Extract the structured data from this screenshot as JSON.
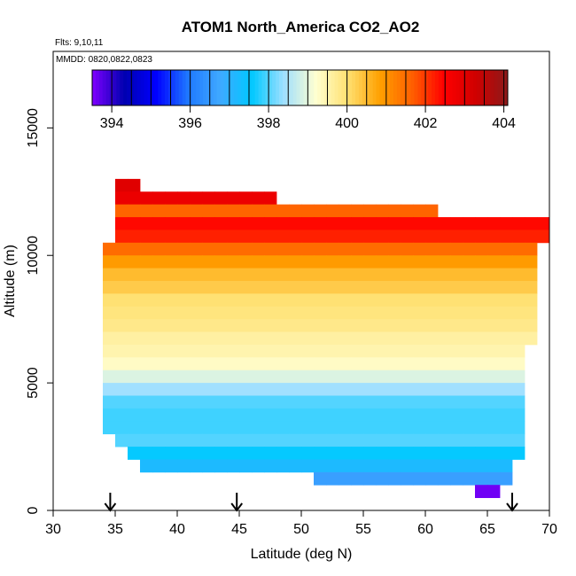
{
  "chart_data": {
    "type": "heatmap",
    "title": "ATOM1 North_America CO2_AO2",
    "notes": [
      "Flts: 9,10,11",
      "MMDD: 0820,0822,0823"
    ],
    "xlabel": "Latitude (deg N)",
    "ylabel": "Altitude (m)",
    "xlim": [
      30,
      70
    ],
    "ylim": [
      0,
      18000
    ],
    "xticks": [
      30,
      35,
      40,
      45,
      50,
      55,
      60,
      65,
      70
    ],
    "yticks": [
      0,
      5000,
      10000,
      15000
    ],
    "grid": false,
    "colorbar": {
      "placement": "top, inside plot",
      "range": [
        393.5,
        404.1
      ],
      "ticks": [
        394,
        396,
        398,
        400,
        402,
        404
      ],
      "colors": [
        "#8000ff",
        "#0000b0",
        "#0000ff",
        "#1f78ff",
        "#3fa9ff",
        "#00c8ff",
        "#a0e0ff",
        "#ffffd0",
        "#ffe070",
        "#ffa000",
        "#ff6000",
        "#ff0000",
        "#d00000",
        "#8b1a1a"
      ]
    },
    "markers_latitude": [
      34.6,
      44.8,
      67.0
    ],
    "cell_size": {
      "latitude_deg": 1.0,
      "altitude_m": 500
    },
    "grid_cells": [
      {
        "altitude_band": [
          12500,
          13000
        ],
        "lat_range": [
          35,
          37
        ],
        "co2": 403.0
      },
      {
        "altitude_band": [
          12000,
          12500
        ],
        "lat_range": [
          35,
          48
        ],
        "co2": 402.8
      },
      {
        "altitude_band": [
          11500,
          12000
        ],
        "lat_range": [
          35,
          61
        ],
        "co2": 401.6
      },
      {
        "altitude_band": [
          11000,
          11500
        ],
        "lat_range": [
          35,
          70
        ],
        "co2": 402.4
      },
      {
        "altitude_band": [
          10500,
          11000
        ],
        "lat_range": [
          35,
          70
        ],
        "co2": 402.2
      },
      {
        "altitude_band": [
          10000,
          10500
        ],
        "lat_range": [
          34,
          69
        ],
        "co2": 401.5
      },
      {
        "altitude_band": [
          9500,
          10000
        ],
        "lat_range": [
          34,
          69
        ],
        "co2": 400.9
      },
      {
        "altitude_band": [
          9000,
          9500
        ],
        "lat_range": [
          34,
          69
        ],
        "co2": 400.5
      },
      {
        "altitude_band": [
          8500,
          9000
        ],
        "lat_range": [
          34,
          69
        ],
        "co2": 400.3
      },
      {
        "altitude_band": [
          8000,
          8500
        ],
        "lat_range": [
          34,
          69
        ],
        "co2": 400.0
      },
      {
        "altitude_band": [
          7500,
          8000
        ],
        "lat_range": [
          34,
          69
        ],
        "co2": 399.9
      },
      {
        "altitude_band": [
          7000,
          7500
        ],
        "lat_range": [
          34,
          69
        ],
        "co2": 399.8
      },
      {
        "altitude_band": [
          6500,
          7000
        ],
        "lat_range": [
          34,
          69
        ],
        "co2": 399.6
      },
      {
        "altitude_band": [
          6000,
          6500
        ],
        "lat_range": [
          34,
          68
        ],
        "co2": 399.5
      },
      {
        "altitude_band": [
          5500,
          6000
        ],
        "lat_range": [
          34,
          68
        ],
        "co2": 399.3
      },
      {
        "altitude_band": [
          5000,
          5500
        ],
        "lat_range": [
          34,
          68
        ],
        "co2": 398.9
      },
      {
        "altitude_band": [
          4500,
          5000
        ],
        "lat_range": [
          34,
          68
        ],
        "co2": 398.4
      },
      {
        "altitude_band": [
          4000,
          4500
        ],
        "lat_range": [
          34,
          68
        ],
        "co2": 398.0
      },
      {
        "altitude_band": [
          3500,
          4000
        ],
        "lat_range": [
          34,
          68
        ],
        "co2": 397.9
      },
      {
        "altitude_band": [
          3000,
          3500
        ],
        "lat_range": [
          34,
          68
        ],
        "co2": 397.9
      },
      {
        "altitude_band": [
          2500,
          3000
        ],
        "lat_range": [
          35,
          68
        ],
        "co2": 398.0
      },
      {
        "altitude_band": [
          2000,
          2500
        ],
        "lat_range": [
          36,
          68
        ],
        "co2": 397.6
      },
      {
        "altitude_band": [
          1500,
          2000
        ],
        "lat_range": [
          37,
          67
        ],
        "co2": 397.2
      },
      {
        "altitude_band": [
          1000,
          1500
        ],
        "lat_range": [
          51,
          67
        ],
        "co2": 396.6
      },
      {
        "altitude_band": [
          500,
          1000
        ],
        "lat_range": [
          64,
          66
        ],
        "co2": 393.6
      }
    ]
  }
}
